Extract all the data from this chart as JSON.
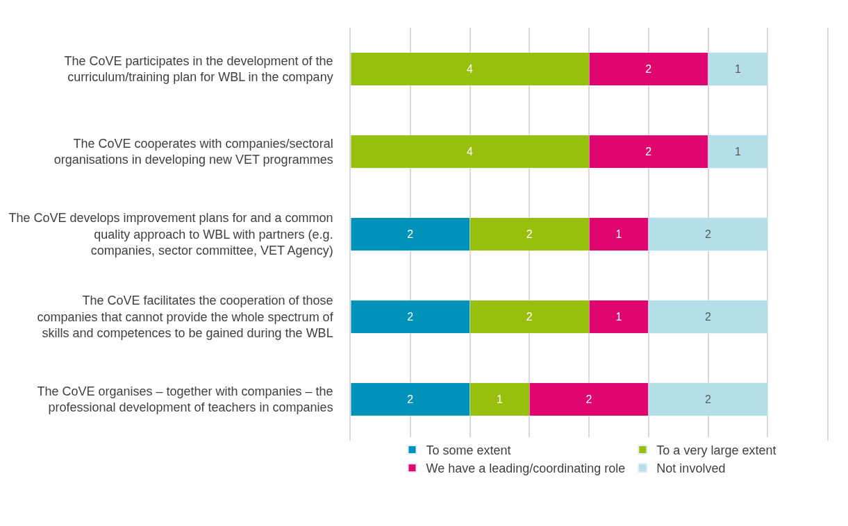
{
  "chart_data": {
    "type": "bar",
    "orientation": "horizontal",
    "stacked": true,
    "data_labels": true,
    "categories": [
      "The CoVE participates in the development of the curriculum/training plan for WBL in the company",
      "The CoVE cooperates with companies/sectoral organisations in developing new VET programmes",
      "The CoVE develops improvement plans for and a common quality approach to WBL with partners (e.g. companies, sector committee, VET Agency)",
      "The CoVE facilitates the cooperation of those companies that cannot provide the whole spectrum of skills and competences to be gained during the WBL",
      "The CoVE organises – together with companies – the professional development of teachers in companies"
    ],
    "series": [
      {
        "name": "To some extent",
        "color": "#0092b9",
        "values": [
          null,
          null,
          2,
          2,
          2
        ]
      },
      {
        "name": "To a very large extent",
        "color": "#97bf0d",
        "values": [
          4,
          4,
          2,
          2,
          1
        ]
      },
      {
        "name": "We have a leading/coordinating role",
        "color": "#e0066f",
        "values": [
          2,
          2,
          1,
          1,
          2
        ]
      },
      {
        "name": "Not involved",
        "color": "#b4dfe9",
        "values": [
          1,
          1,
          2,
          2,
          2
        ]
      }
    ],
    "xlim": [
      0,
      8
    ],
    "grid": "x",
    "legend": "bottom",
    "tick_labels": "y"
  }
}
